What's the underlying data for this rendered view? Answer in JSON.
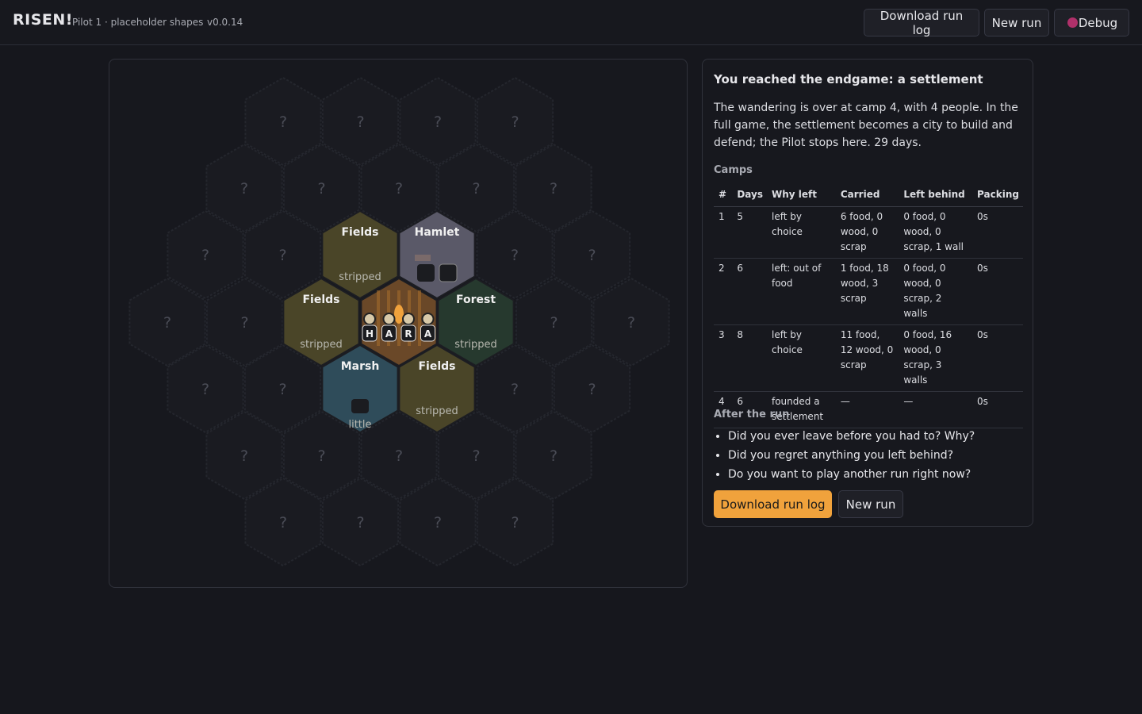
{
  "header": {
    "title": "RISEN!",
    "subtitle": "Pilot 1 · placeholder shapes",
    "version": "v0.0.14",
    "buttons": [
      "Download run log",
      "New run",
      "Debug"
    ]
  },
  "map": {
    "unknown_label": "?",
    "tiles": [
      {
        "name": "Fields",
        "status": "stripped"
      },
      {
        "name": "Hamlet"
      },
      {
        "name": "Fields",
        "status": "stripped"
      },
      {
        "name": "Forest",
        "status": "stripped"
      },
      {
        "name": "Marsh",
        "status": "little"
      },
      {
        "name": "Fields",
        "status": "stripped"
      }
    ],
    "camp_people": [
      "H",
      "A",
      "R",
      "A"
    ]
  },
  "panel": {
    "title": "You reached the endgame: a settlement",
    "text": "The wandering is over at camp 4, with 4 people. In the full game, the settlement becomes a city to build and defend; the Pilot stops here. 29 days.",
    "camps_heading": "Camps",
    "table": {
      "columns": [
        "#",
        "Days",
        "Why left",
        "Carried",
        "Left behind",
        "Packing"
      ],
      "rows": [
        [
          1,
          5,
          "left by choice",
          "6 food, 0 wood, 0 scrap",
          "0 food, 0 wood, 0 scrap, 1 wall",
          "0s"
        ],
        [
          2,
          6,
          "left: out of food",
          "1 food, 18 wood, 3 scrap",
          "0 food, 0 wood, 0 scrap, 2 walls",
          "0s"
        ],
        [
          3,
          8,
          "left by choice",
          "11 food, 12 wood, 0 scrap",
          "0 food, 16 wood, 0 scrap, 3 walls",
          "0s"
        ],
        [
          4,
          6,
          "founded a settlement",
          "—",
          "—",
          "0s"
        ]
      ]
    },
    "after_heading": "After the run",
    "questions": [
      "Did you ever leave before you had to? Why?",
      "Did you regret anything you left behind?",
      "Do you want to play another run right now?"
    ],
    "buttons": [
      "Download run log",
      "New run"
    ]
  }
}
